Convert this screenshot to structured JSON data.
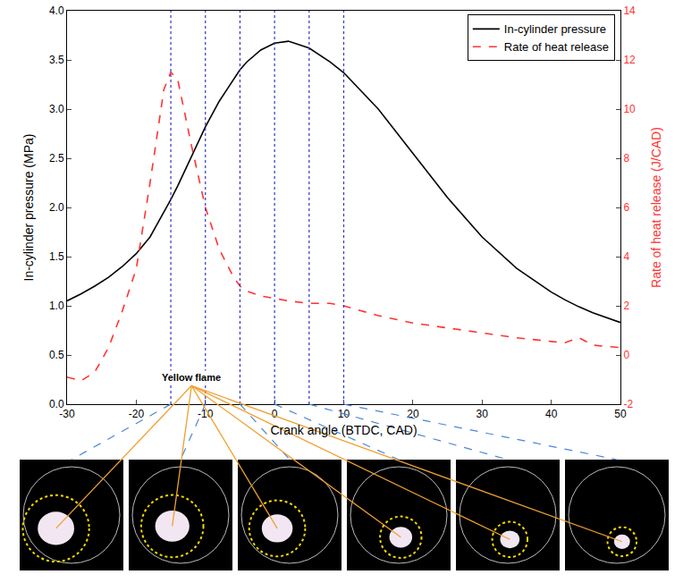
{
  "chart_data": {
    "type": "line",
    "x_label": "Crank angle (BTDC, CAD)",
    "y_label": "In-cylinder pressure (MPa)",
    "y2_label": "Rate of heat release (J/CAD)",
    "x": [
      -30,
      -28,
      -26,
      -24,
      -22,
      -20,
      -18,
      -16,
      -15,
      -14,
      -12,
      -10,
      -8,
      -6,
      -5,
      -4,
      -2,
      0,
      2,
      5,
      8,
      10,
      15,
      20,
      25,
      30,
      35,
      40,
      42,
      44,
      46,
      50
    ],
    "series": [
      {
        "name": "In-cylinder pressure",
        "color": "#000000",
        "line_style": "solid",
        "axis": "y",
        "values": [
          1.05,
          1.12,
          1.2,
          1.29,
          1.4,
          1.53,
          1.7,
          1.95,
          2.08,
          2.22,
          2.52,
          2.82,
          3.08,
          3.3,
          3.4,
          3.48,
          3.6,
          3.67,
          3.69,
          3.62,
          3.48,
          3.37,
          3.0,
          2.55,
          2.1,
          1.7,
          1.38,
          1.14,
          1.06,
          0.99,
          0.93,
          0.83
        ]
      },
      {
        "name": "Rate of heat release",
        "color": "#ff3333",
        "line_style": "dashed",
        "axis": "y2",
        "values": [
          -0.9,
          -1.05,
          -0.7,
          0.3,
          1.8,
          3.5,
          7,
          10.8,
          11.5,
          11.2,
          8.5,
          6,
          4.3,
          3.2,
          2.8,
          2.6,
          2.4,
          2.3,
          2.2,
          2.1,
          2.1,
          2.0,
          1.6,
          1.3,
          1.1,
          0.9,
          0.7,
          0.55,
          0.5,
          0.7,
          0.4,
          0.3
        ]
      }
    ],
    "xlim": [
      -30,
      50
    ],
    "xticks": [
      -30,
      -20,
      -10,
      0,
      10,
      20,
      30,
      40,
      50
    ],
    "ylim": [
      0,
      4
    ],
    "yticks": [
      {
        "value": 0,
        "label": "0.0"
      },
      0.5,
      {
        "value": 1,
        "label": "1.0"
      },
      1.5,
      {
        "value": 2,
        "label": "2.0"
      },
      2.5,
      {
        "value": 3,
        "label": "3.0"
      },
      3.5,
      {
        "value": 4,
        "label": "4.0"
      }
    ],
    "y2lim": [
      -2,
      14
    ],
    "y2ticks": [
      -2,
      0,
      2,
      4,
      6,
      8,
      10,
      12,
      14
    ],
    "image_angles": [
      -15,
      -10,
      -5,
      0,
      5,
      10
    ],
    "annotations": [
      {
        "text": "Yellow flame",
        "x": -12,
        "y": 0.27
      }
    ],
    "legend": "upper right",
    "grid": false
  }
}
